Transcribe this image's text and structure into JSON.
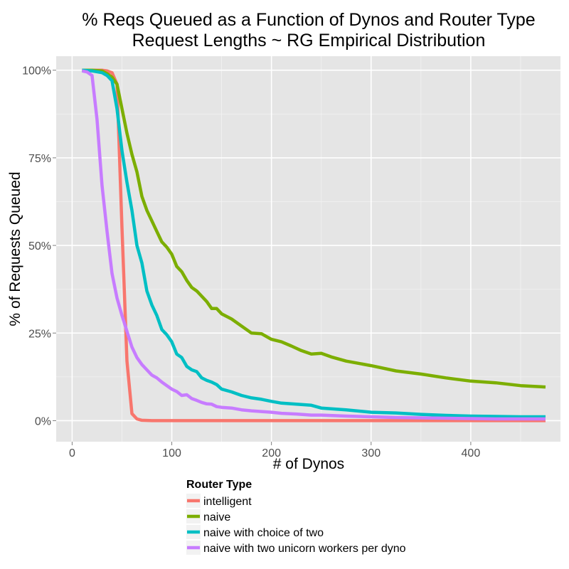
{
  "chart_data": {
    "type": "line",
    "title": "% Reqs Queued as a Function of Dynos and Router Type",
    "subtitle": "Request Lengths ~ RG Empirical Distribution",
    "xlabel": "# of Dynos",
    "ylabel": "% of Requests Queued",
    "xlim": [
      -16,
      490
    ],
    "ylim": [
      -0.06,
      1.04
    ],
    "x_ticks": [
      0,
      100,
      200,
      300,
      400
    ],
    "x_tick_labels": [
      "0",
      "100",
      "200",
      "300",
      "400"
    ],
    "y_ticks": [
      0,
      0.25,
      0.5,
      0.75,
      1.0
    ],
    "y_tick_labels": [
      "0%",
      "25%",
      "50%",
      "75%",
      "100%"
    ],
    "grid": true,
    "legend": {
      "title": "Router Type",
      "position": "bottom"
    },
    "series": [
      {
        "name": "intelligent",
        "color": "#F8766D",
        "x": [
          10,
          20,
          30,
          35,
          40,
          45,
          50,
          55,
          60,
          65,
          70,
          80,
          100,
          150,
          200,
          300,
          400,
          475
        ],
        "y": [
          1.0,
          1.0,
          1.0,
          0.998,
          0.993,
          0.96,
          0.55,
          0.17,
          0.02,
          0.005,
          0.001,
          0,
          0,
          0,
          0,
          0,
          0,
          0
        ]
      },
      {
        "name": "naive",
        "color": "#7CAE00",
        "x": [
          10,
          20,
          30,
          35,
          40,
          45,
          50,
          55,
          60,
          65,
          70,
          75,
          80,
          85,
          90,
          95,
          100,
          105,
          110,
          115,
          120,
          125,
          130,
          135,
          140,
          145,
          150,
          160,
          170,
          180,
          190,
          200,
          210,
          220,
          230,
          240,
          250,
          260,
          275,
          300,
          325,
          350,
          375,
          400,
          425,
          450,
          475
        ],
        "y": [
          1.0,
          1.0,
          0.998,
          0.99,
          0.98,
          0.96,
          0.89,
          0.82,
          0.76,
          0.71,
          0.64,
          0.6,
          0.57,
          0.54,
          0.51,
          0.495,
          0.475,
          0.44,
          0.425,
          0.4,
          0.38,
          0.37,
          0.355,
          0.34,
          0.32,
          0.32,
          0.305,
          0.29,
          0.27,
          0.25,
          0.248,
          0.232,
          0.225,
          0.213,
          0.2,
          0.19,
          0.192,
          0.182,
          0.17,
          0.157,
          0.142,
          0.133,
          0.122,
          0.113,
          0.108,
          0.1,
          0.096
        ]
      },
      {
        "name": "naive with choice of two",
        "color": "#00BFC4",
        "x": [
          10,
          20,
          30,
          35,
          40,
          45,
          50,
          55,
          60,
          65,
          70,
          75,
          80,
          85,
          90,
          95,
          100,
          105,
          110,
          115,
          120,
          125,
          130,
          135,
          140,
          145,
          150,
          160,
          170,
          180,
          190,
          200,
          210,
          220,
          230,
          240,
          250,
          275,
          300,
          325,
          350,
          375,
          400,
          425,
          450,
          475
        ],
        "y": [
          1.0,
          0.998,
          0.993,
          0.985,
          0.97,
          0.89,
          0.77,
          0.68,
          0.6,
          0.5,
          0.45,
          0.37,
          0.33,
          0.3,
          0.26,
          0.245,
          0.225,
          0.19,
          0.18,
          0.155,
          0.145,
          0.14,
          0.122,
          0.115,
          0.11,
          0.103,
          0.09,
          0.082,
          0.072,
          0.065,
          0.061,
          0.055,
          0.05,
          0.048,
          0.046,
          0.044,
          0.036,
          0.031,
          0.024,
          0.022,
          0.018,
          0.015,
          0.013,
          0.012,
          0.011,
          0.011
        ]
      },
      {
        "name": "naive with two unicorn workers per dyno",
        "color": "#C77CFF",
        "x": [
          10,
          15,
          20,
          25,
          30,
          35,
          40,
          45,
          50,
          55,
          60,
          65,
          70,
          75,
          80,
          85,
          90,
          95,
          100,
          105,
          110,
          115,
          120,
          125,
          130,
          135,
          140,
          145,
          150,
          160,
          170,
          180,
          190,
          200,
          210,
          225,
          240,
          250,
          275,
          300,
          325,
          350,
          375,
          400,
          425,
          450,
          475
        ],
        "y": [
          0.998,
          0.995,
          0.985,
          0.86,
          0.67,
          0.54,
          0.42,
          0.35,
          0.3,
          0.255,
          0.21,
          0.18,
          0.16,
          0.145,
          0.13,
          0.122,
          0.11,
          0.1,
          0.09,
          0.083,
          0.072,
          0.074,
          0.063,
          0.058,
          0.052,
          0.048,
          0.047,
          0.04,
          0.038,
          0.036,
          0.031,
          0.028,
          0.026,
          0.024,
          0.021,
          0.019,
          0.016,
          0.016,
          0.013,
          0.011,
          0.009,
          0.008,
          0.007,
          0.006,
          0.005,
          0.005,
          0.005
        ]
      }
    ]
  }
}
